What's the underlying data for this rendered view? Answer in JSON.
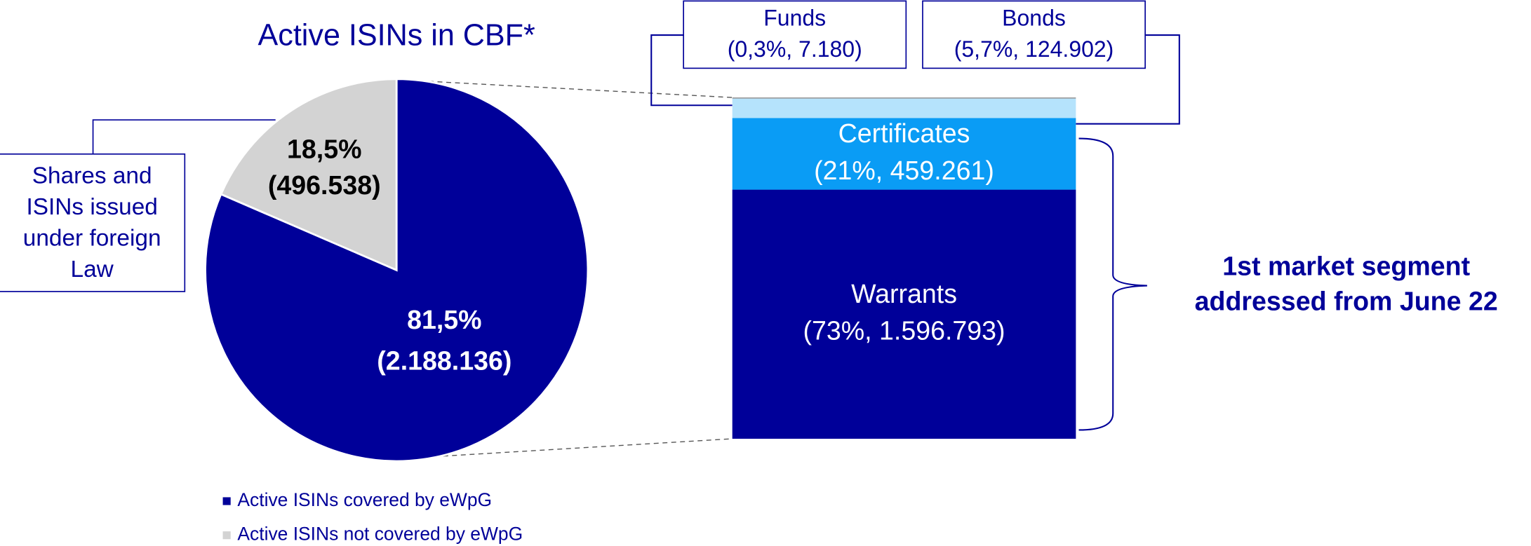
{
  "chart_data": [
    {
      "type": "pie",
      "title": "Active ISINs in CBF*",
      "categories": [
        "Active ISINs covered by eWpG",
        "Active ISINs not covered by eWpG"
      ],
      "values": [
        81.5,
        18.5
      ],
      "value_labels": [
        "81,5%",
        "18,5%"
      ],
      "count_labels": [
        "(2.188.136)",
        "(496.538)"
      ],
      "colors": [
        "#000099",
        "#d3d3d3"
      ],
      "annotation": "Shares and ISINs issued under foreign Law"
    },
    {
      "type": "stacked_bar",
      "categories": [
        "Warrants",
        "Certificates",
        "Bonds",
        "Funds"
      ],
      "values": [
        73,
        21,
        5.7,
        0.3
      ],
      "value_labels": [
        "(73%, 1.596.793)",
        "(21%, 459.261)",
        "(5,7%, 124.902)",
        "(0,3%, 7.180)"
      ],
      "colors": [
        "#000099",
        "#0a9cf5",
        "#b5e3fc",
        "#8f8f8f"
      ],
      "annotation": "1st market segment addressed from June 22"
    }
  ]
}
